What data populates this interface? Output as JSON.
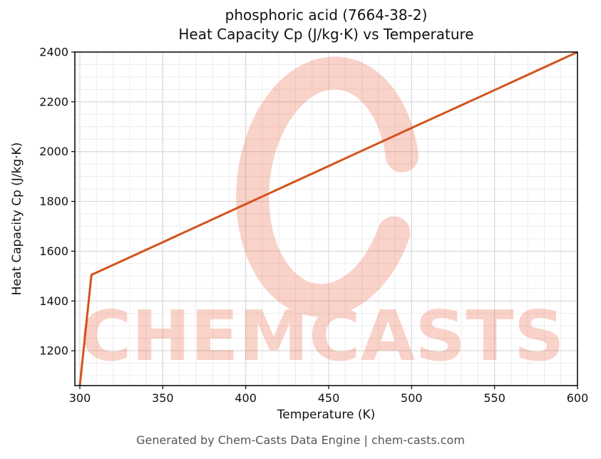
{
  "page": {
    "background": "#ffffff"
  },
  "footer": {
    "text": "Generated by Chem-Casts Data Engine | chem-casts.com"
  },
  "watermark": {
    "text": "CHEMCASTS",
    "logo": "c-swirl-logo",
    "color": "#e96a4b",
    "opacity": 0.3
  },
  "chart_data": {
    "type": "line",
    "title": "phosphoric acid (7664-38-2) — Heat Capacity Cp (J/kg·K) vs Temperature",
    "title_lines": [
      "phosphoric acid (7664-38-2)",
      "Heat Capacity Cp (J/kg·K) vs Temperature"
    ],
    "xlabel": "Temperature (K)",
    "ylabel": "Heat Capacity Cp (J/kg·K)",
    "xlim": [
      297,
      600
    ],
    "ylim": [
      1060,
      2400
    ],
    "xticks": [
      300,
      350,
      400,
      450,
      500,
      550,
      600
    ],
    "yticks": [
      1200,
      1400,
      1600,
      1800,
      2000,
      2200,
      2400
    ],
    "x_minor_step": 10,
    "y_minor_step": 50,
    "grid": true,
    "legend": false,
    "line_color": "#d4531d",
    "series": [
      {
        "name": "Cp (J/kg·K)",
        "points": [
          [
            300,
            1060
          ],
          [
            307,
            1505
          ],
          [
            350,
            1636
          ],
          [
            400,
            1789
          ],
          [
            450,
            1942
          ],
          [
            500,
            2095
          ],
          [
            550,
            2247
          ],
          [
            600,
            2400
          ]
        ]
      }
    ]
  }
}
